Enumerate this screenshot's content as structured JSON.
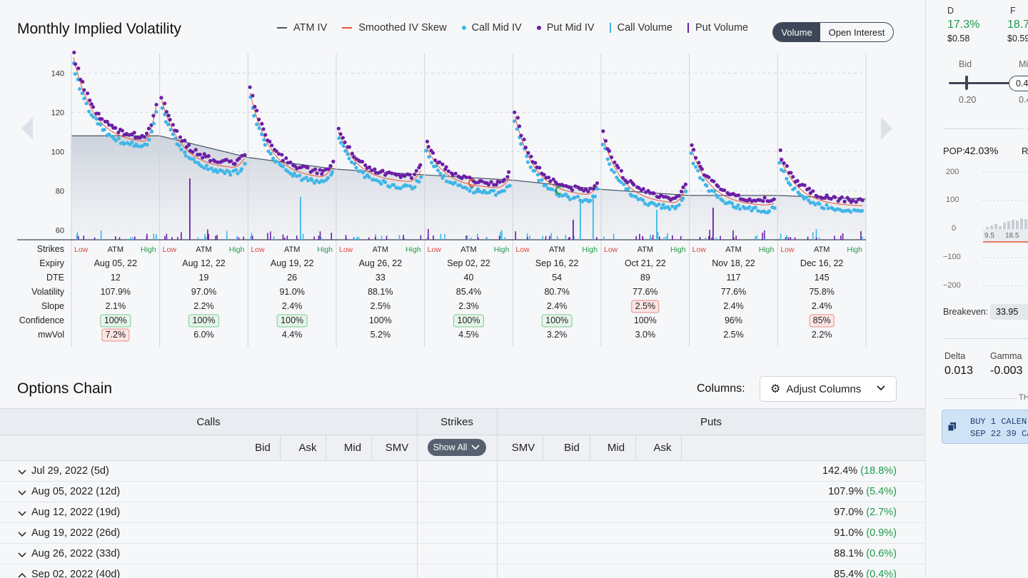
{
  "chart": {
    "title": "Monthly Implied Volatility",
    "legend": [
      {
        "label": "ATM IV",
        "kind": "line",
        "color": "#4a5566"
      },
      {
        "label": "Smoothed IV Skew",
        "kind": "line",
        "color": "#e8542e"
      },
      {
        "label": "Call Mid IV",
        "kind": "dot",
        "color": "#3fb6e8"
      },
      {
        "label": "Put Mid IV",
        "kind": "dot",
        "color": "#6a1fa6"
      },
      {
        "label": "Call Volume",
        "kind": "bar",
        "color": "#3fb6e8"
      },
      {
        "label": "Put Volume",
        "kind": "bar",
        "color": "#6a1fa6"
      }
    ],
    "toggle": {
      "active": "Volume",
      "other": "Open Interest"
    },
    "y_ticks": [
      "140",
      "120",
      "100",
      "80",
      "60"
    ]
  },
  "chart_data": {
    "type": "scatter",
    "title": "Monthly Implied Volatility",
    "ylim": [
      55,
      150
    ],
    "y_ticks": [
      60,
      80,
      100,
      120,
      140
    ],
    "atm_iv_line": [
      108,
      108,
      97,
      91,
      88.1,
      85.4,
      80.7,
      77.6,
      77.6,
      75.8
    ],
    "expiries": [
      {
        "expiry": "Aug 05, 22",
        "dte": "12",
        "volatility": "107.9%",
        "slope": "2.1%",
        "confidence": "100%",
        "confidence_style": "good",
        "mwvol": "7.2%",
        "mwvol_style": "bad",
        "iv_start": 148,
        "iv_low": 104,
        "iv_end": 122
      },
      {
        "expiry": "Aug 12, 22",
        "dte": "19",
        "volatility": "97.0%",
        "slope": "2.2%",
        "confidence": "100%",
        "confidence_style": "good",
        "mwvol": "6.0%",
        "mwvol_style": "none",
        "iv_start": 126,
        "iv_low": 91,
        "iv_end": 96
      },
      {
        "expiry": "Aug 19, 22",
        "dte": "26",
        "volatility": "91.0%",
        "slope": "2.4%",
        "confidence": "100%",
        "confidence_style": "good",
        "mwvol": "4.4%",
        "mwvol_style": "none",
        "iv_start": 130,
        "iv_low": 86,
        "iv_end": 92
      },
      {
        "expiry": "Aug 26, 22",
        "dte": "33",
        "volatility": "88.1%",
        "slope": "2.5%",
        "confidence": "100%",
        "confidence_style": "none",
        "mwvol": "5.2%",
        "mwvol_style": "none",
        "iv_start": 110,
        "iv_low": 84,
        "iv_end": 90
      },
      {
        "expiry": "Sep 02, 22",
        "dte": "40",
        "volatility": "85.4%",
        "slope": "2.3%",
        "confidence": "100%",
        "confidence_style": "good",
        "mwvol": "4.5%",
        "mwvol_style": "none",
        "iv_start": 102,
        "iv_low": 81,
        "iv_end": 86
      },
      {
        "expiry": "Sep 16, 22",
        "dte": "54",
        "volatility": "80.7%",
        "slope": "2.4%",
        "confidence": "100%",
        "confidence_style": "good",
        "mwvol": "3.2%",
        "mwvol_style": "none",
        "iv_start": 118,
        "iv_low": 77,
        "iv_end": 82
      },
      {
        "expiry": "Oct 21, 22",
        "dte": "89",
        "volatility": "77.6%",
        "slope": "2.5%",
        "confidence": "100%",
        "confidence_style": "none",
        "slope_style": "bad",
        "mwvol": "3.0%",
        "mwvol_style": "none",
        "iv_start": 107,
        "iv_low": 73,
        "iv_end": 81
      },
      {
        "expiry": "Nov 18, 22",
        "dte": "117",
        "volatility": "77.6%",
        "slope": "2.4%",
        "confidence": "96%",
        "confidence_style": "none",
        "mwvol": "2.5%",
        "mwvol_style": "none",
        "iv_start": 101,
        "iv_low": 72,
        "iv_end": 73
      },
      {
        "expiry": "Dec 16, 22",
        "dte": "145",
        "volatility": "75.8%",
        "slope": "2.4%",
        "confidence": "85%",
        "confidence_style": "bad",
        "mwvol": "2.2%",
        "mwvol_style": "none",
        "iv_start": 97,
        "iv_low": 72,
        "iv_end": 72
      }
    ]
  },
  "stats_labels": {
    "strikes": "Strikes",
    "expiry": "Expiry",
    "dte": "DTE",
    "volatility": "Volatility",
    "slope": "Slope",
    "confidence": "Confidence",
    "mwvol": "mwVol",
    "low": "Low",
    "atm": "ATM",
    "high": "High"
  },
  "chain": {
    "title": "Options Chain",
    "columns_label": "Columns:",
    "adjust_label": "Adjust Columns",
    "calls_label": "Calls",
    "strikes_label": "Strikes",
    "puts_label": "Puts",
    "show_all": "Show All",
    "call_cols": [
      "Bid",
      "Ask",
      "Mid",
      "SMV"
    ],
    "put_cols": [
      "SMV",
      "Bid",
      "Mid",
      "Ask"
    ],
    "rows": [
      {
        "expiry": "Jul 29, 2022 (5d)",
        "iv": "142.4%",
        "change": "(18.8%)",
        "open": false
      },
      {
        "expiry": "Aug 05, 2022 (12d)",
        "iv": "107.9%",
        "change": "(5.4%)",
        "open": false
      },
      {
        "expiry": "Aug 12, 2022 (19d)",
        "iv": "97.0%",
        "change": "(2.7%)",
        "open": false
      },
      {
        "expiry": "Aug 19, 2022 (26d)",
        "iv": "91.0%",
        "change": "(0.9%)",
        "open": false
      },
      {
        "expiry": "Aug 26, 2022 (33d)",
        "iv": "88.1%",
        "change": "(0.6%)",
        "open": false
      },
      {
        "expiry": "Sep 02, 2022 (40d)",
        "iv": "85.4%",
        "change": "(0.4%)",
        "open": true
      }
    ]
  },
  "right_panel": {
    "d_label": "D",
    "f_label": "F",
    "d_value": "17.3%",
    "f_value": "18.7",
    "d_price": "$0.58",
    "f_price": "$0.59",
    "bid_label": "Bid",
    "mid_label": "Mi",
    "bid_value": "0.20",
    "slider_value": "0.4",
    "mid_value": "0.4",
    "pop_label": "POP:",
    "pop_value": "42.03%",
    "r_label": "R",
    "pl_ticks": [
      "200",
      "100",
      "0",
      "−100",
      "−200"
    ],
    "pl_x_ticks": [
      "9.5",
      "18.5"
    ],
    "breakeven_label": "Breakeven:",
    "breakeven_value": "33.95",
    "delta_label": "Delta",
    "delta_value": "0.013",
    "gamma_label": "Gamma",
    "gamma_value": "-0.003",
    "th_label": "TH",
    "order_line1": "BUY 1 CALEN",
    "order_line2": "SEP 22 39 CA"
  }
}
